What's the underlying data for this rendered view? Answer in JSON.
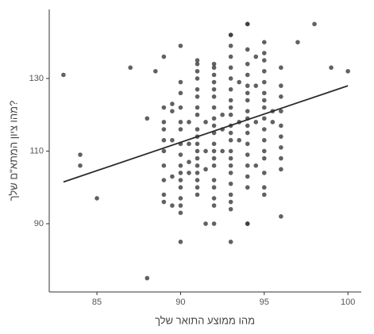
{
  "chart_data": {
    "type": "scatter",
    "x_label": "מהו ממוצע התואר שלך",
    "y_label": "מהו ציון המתא\"ם שלך?",
    "color": "#3a3a3a",
    "xlim": [
      82.15,
      100.8
    ],
    "ylim": [
      71.2,
      149
    ],
    "xticks": [
      85,
      90,
      95,
      100
    ],
    "yticks": [
      90,
      110,
      130
    ],
    "grid": false,
    "x": [
      83,
      84,
      84,
      85,
      87,
      88,
      88,
      88.5,
      89,
      90,
      97,
      98,
      99,
      100,
      94,
      93,
      93,
      90,
      96,
      94,
      92,
      91.5,
      89,
      89,
      89,
      89,
      89,
      89,
      89,
      89,
      89,
      89.5,
      89.5,
      89.5,
      89.5,
      89.5,
      90,
      90,
      90,
      90,
      90,
      90,
      90,
      90,
      90,
      90,
      90,
      90,
      90,
      90,
      90.5,
      90.5,
      90.5,
      90.5,
      91,
      91,
      91,
      91,
      91,
      91,
      91,
      91,
      91,
      91,
      91,
      91,
      91,
      91,
      91,
      91,
      91,
      91,
      91.5,
      91.5,
      91.5,
      92,
      92,
      92,
      92,
      92,
      92,
      92,
      92,
      92,
      92,
      92,
      92,
      92,
      92,
      92,
      92,
      92,
      92,
      92.5,
      92.5,
      92.5,
      93,
      93,
      93,
      93,
      93,
      93,
      93,
      93,
      93,
      93,
      93,
      93,
      93,
      93,
      93,
      93,
      93,
      93,
      93,
      93,
      93.5,
      93.5,
      93.5,
      94,
      94,
      94,
      94,
      94,
      94,
      94,
      94,
      94,
      94,
      94,
      94,
      94,
      94,
      94,
      94,
      94,
      94.5,
      94.5,
      94.5,
      94.5,
      95,
      95,
      95,
      95,
      95,
      95,
      95,
      95,
      95,
      95,
      95,
      95,
      95,
      95,
      95,
      95,
      95.5,
      95.5,
      96,
      96,
      96,
      96,
      96,
      96,
      96,
      96,
      96
    ],
    "y": [
      131,
      109,
      106,
      97,
      133,
      119,
      75,
      132,
      136,
      139,
      140,
      145,
      133,
      132,
      145,
      142,
      85,
      85,
      92,
      90,
      90,
      90,
      122,
      118,
      116,
      113,
      110,
      106,
      102,
      98,
      96,
      123,
      121,
      113,
      103,
      95,
      129,
      126,
      122,
      118,
      116,
      112,
      109,
      106,
      104,
      102,
      100,
      97,
      95,
      93,
      118,
      112,
      107,
      104,
      135,
      134,
      132,
      130,
      127,
      125,
      122,
      120,
      116,
      114,
      112,
      110,
      108,
      106,
      104,
      102,
      100,
      98,
      105,
      110,
      118,
      134,
      133,
      131,
      129,
      127,
      125,
      122,
      119,
      117,
      115,
      112,
      110,
      108,
      106,
      102,
      100,
      97,
      95,
      120,
      116,
      110,
      142,
      139,
      136,
      133,
      130,
      127,
      124,
      122,
      120,
      117,
      115,
      113,
      110,
      108,
      106,
      104,
      101,
      98,
      96,
      94,
      129,
      118,
      113,
      145,
      138,
      134,
      131,
      128,
      126,
      124,
      121,
      119,
      117,
      115,
      112,
      109,
      106,
      103,
      100,
      90,
      136,
      128,
      118,
      106,
      140,
      137,
      135,
      132,
      129,
      126,
      124,
      122,
      119,
      116,
      113,
      110,
      108,
      104,
      100,
      98,
      121,
      118,
      133,
      128,
      125,
      121,
      117,
      114,
      111,
      108,
      105
    ],
    "trend_line": {
      "x": [
        83,
        100
      ],
      "y": [
        101.5,
        128
      ],
      "color": "#2b2b2b"
    }
  }
}
